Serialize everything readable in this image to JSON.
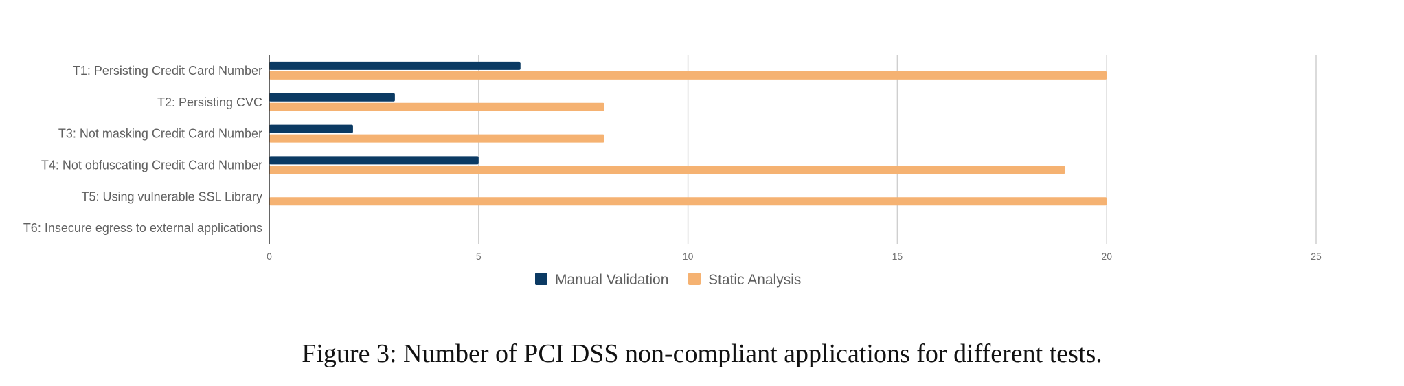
{
  "caption": "Figure 3: Number of PCI DSS non-compliant applications for different tests.",
  "chart_data": {
    "type": "bar",
    "orientation": "horizontal",
    "categories": [
      "T1: Persisting Credit Card Number",
      "T2: Persisting CVC",
      "T3: Not masking Credit Card Number",
      "T4: Not obfuscating Credit Card Number",
      "T5: Using vulnerable SSL Library",
      "T6: Insecure egress to external applications"
    ],
    "series": [
      {
        "name": "Manual Validation",
        "color": "#0b3a63",
        "values": [
          6,
          3,
          2,
          5,
          0,
          0
        ]
      },
      {
        "name": "Static Analysis",
        "color": "#f5b272",
        "values": [
          20,
          8,
          8,
          19,
          20,
          0
        ]
      }
    ],
    "xticks": [
      "0",
      "5",
      "10",
      "15",
      "20",
      "25"
    ],
    "xlim": [
      0,
      25
    ],
    "grid": true,
    "legend": "bottom-center"
  }
}
